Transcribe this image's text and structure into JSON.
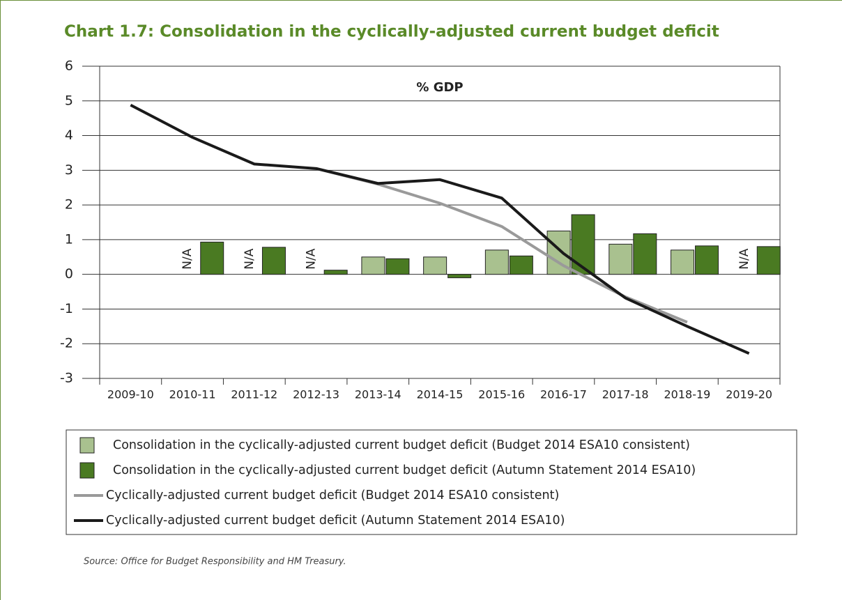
{
  "chart_data": {
    "type": "bar",
    "title": "Chart 1.7: Consolidation in the cyclically-adjusted current budget deficit",
    "annotation": "% GDP",
    "source": "Source: Office for Budget Responsibility and HM Treasury.",
    "categories": [
      "2009-10",
      "2010-11",
      "2011-12",
      "2012-13",
      "2013-14",
      "2014-15",
      "2015-16",
      "2016-17",
      "2017-18",
      "2018-19",
      "2019-20"
    ],
    "series": [
      {
        "name": "Consolidation in the cyclically-adjusted current budget deficit (Budget 2014 ESA10 consistent)",
        "type": "bar",
        "color": "#a9c18f",
        "values": [
          null,
          null,
          null,
          null,
          0.5,
          0.5,
          0.7,
          1.25,
          0.87,
          0.7,
          null
        ],
        "value_labels": [
          null,
          "N/A",
          "N/A",
          "N/A",
          null,
          null,
          null,
          null,
          null,
          null,
          "N/A"
        ]
      },
      {
        "name": "Consolidation in the cyclically-adjusted current budget deficit (Autumn Statement 2014 ESA10)",
        "type": "bar",
        "color": "#4a7a22",
        "values": [
          null,
          0.93,
          0.78,
          0.12,
          0.45,
          -0.1,
          0.53,
          1.72,
          1.17,
          0.82,
          0.8
        ]
      },
      {
        "name": "Cyclically-adjusted current budget deficit (Budget 2014 ESA10 consistent)",
        "type": "line",
        "color": "#9a9a9a",
        "values": [
          null,
          null,
          null,
          3.05,
          2.6,
          2.05,
          1.38,
          0.25,
          -0.65,
          -1.38,
          null
        ]
      },
      {
        "name": "Cyclically-adjusted current budget deficit (Autumn Statement 2014 ESA10)",
        "type": "line",
        "color": "#1a1a1a",
        "values": [
          4.88,
          3.95,
          3.18,
          3.05,
          2.62,
          2.73,
          2.2,
          0.6,
          -0.68,
          -1.5,
          -2.28
        ]
      }
    ],
    "ylim": [
      -3,
      6
    ],
    "yticks": [
      -3,
      -2,
      -1,
      0,
      1,
      2,
      3,
      4,
      5,
      6
    ],
    "grid": true
  }
}
